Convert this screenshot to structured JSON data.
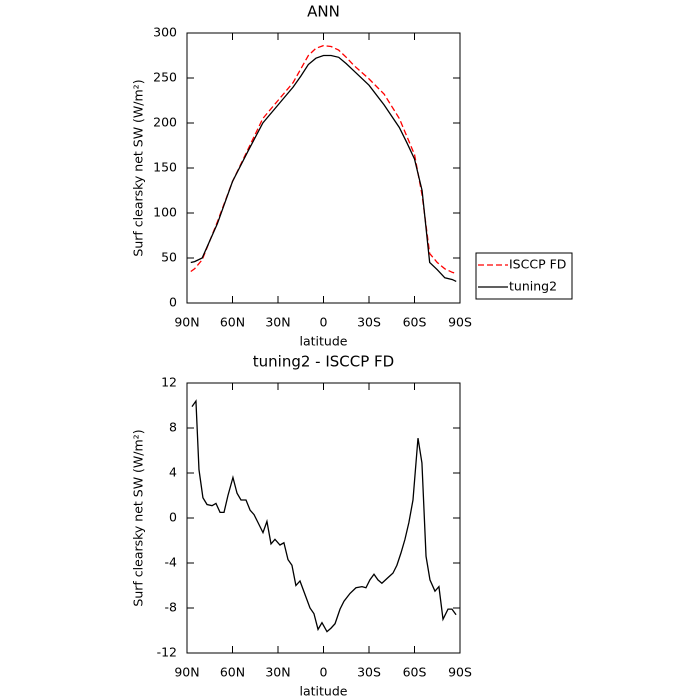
{
  "chart_data": [
    {
      "type": "line",
      "title": "ANN",
      "xlabel": "latitude",
      "ylabel": "Surf clearsky net SW (W/m²)",
      "x": [
        87.5,
        85,
        80,
        70,
        60,
        50,
        40,
        30,
        20,
        15,
        10,
        5,
        0,
        -5,
        -10,
        -15,
        -20,
        -30,
        -40,
        -50,
        -55,
        -60,
        -65,
        -70,
        -75,
        -80,
        -85,
        -87.5
      ],
      "series": [
        {
          "name": "ISCCP FD",
          "color": "#ff0000",
          "dash": true,
          "values": [
            35,
            38,
            48,
            90,
            135,
            170,
            205,
            225,
            245,
            260,
            275,
            283,
            286,
            285,
            281,
            273,
            264,
            249,
            232,
            205,
            185,
            165,
            120,
            55,
            45,
            38,
            34,
            33
          ]
        },
        {
          "name": "tuning2",
          "color": "#000000",
          "dash": false,
          "values": [
            45,
            46,
            50,
            88,
            135,
            168,
            200,
            220,
            240,
            252,
            265,
            272,
            275,
            275,
            273,
            266,
            258,
            242,
            220,
            195,
            178,
            160,
            125,
            45,
            37,
            28,
            26,
            24
          ]
        }
      ],
      "xlim": [
        90,
        -90
      ],
      "xticks": [
        {
          "value": 90,
          "label": "90N"
        },
        {
          "value": 60,
          "label": "60N"
        },
        {
          "value": 30,
          "label": "30N"
        },
        0,
        {
          "value": -30,
          "label": "30S"
        },
        {
          "value": -60,
          "label": "60S"
        },
        {
          "value": -90,
          "label": "90S"
        }
      ],
      "ylim": [
        0,
        300
      ],
      "yticks": [
        0,
        50,
        100,
        150,
        200,
        250,
        300
      ],
      "legend": "outside right"
    },
    {
      "type": "line",
      "title": "tuning2 - ISCCP FD",
      "xlabel": "latitude",
      "ylabel": "Surf clearsky net SW (W/m²)",
      "x": [
        86.7,
        84.1,
        82.1,
        79.5,
        76.8,
        73.5,
        70.9,
        68.2,
        65.6,
        63.0,
        59.7,
        57.0,
        54.4,
        51.1,
        48.4,
        45.8,
        43.2,
        39.9,
        37.3,
        34.6,
        32.0,
        28.7,
        26.1,
        23.4,
        20.8,
        18.2,
        15.5,
        12.2,
        8.9,
        6.3,
        3.6,
        1.0,
        -2.3,
        -4.9,
        -7.6,
        -10.9,
        -13.5,
        -17.5,
        -21.4,
        -25.4,
        -28.0,
        -30.6,
        -33.3,
        -35.9,
        -38.5,
        -42.5,
        -45.8,
        -48.4,
        -51.1,
        -53.7,
        -56.3,
        -59.0,
        -62.3,
        -64.9,
        -67.6,
        -70.2,
        -73.5,
        -76.1,
        -78.8,
        -82.1,
        -84.7,
        -87.4
      ],
      "values": [
        9.9,
        10.4,
        4.3,
        1.8,
        1.2,
        1.1,
        1.3,
        0.5,
        0.5,
        2,
        3.6,
        2.2,
        1.6,
        1.6,
        0.7,
        0.3,
        -0.4,
        -1.3,
        -0.3,
        -2.3,
        -1.9,
        -2.4,
        -2.2,
        -3.7,
        -4.2,
        -6,
        -5.6,
        -6.8,
        -8,
        -8.5,
        -9.9,
        -9.3,
        -10.1,
        -9.8,
        -9.4,
        -8.1,
        -7.4,
        -6.7,
        -6.2,
        -6.1,
        -6.2,
        -5.5,
        -5,
        -5.5,
        -5.8,
        -5.3,
        -4.9,
        -4.2,
        -3.1,
        -1.9,
        -0.4,
        1.6,
        7.1,
        4.9,
        -3.4,
        -5.5,
        -6.5,
        -6.1,
        -9,
        -8.1,
        -8.1,
        -8.6
      ],
      "color": "#000000",
      "xlim": [
        90,
        -90
      ],
      "xticks": [
        {
          "value": 90,
          "label": "90N"
        },
        {
          "value": 60,
          "label": "60N"
        },
        {
          "value": 30,
          "label": "30N"
        },
        0,
        {
          "value": -30,
          "label": "30S"
        },
        {
          "value": -60,
          "label": "60S"
        },
        {
          "value": -90,
          "label": "90S"
        }
      ],
      "ylim": [
        -12,
        12
      ],
      "yticks": [
        -12,
        -8,
        -4,
        0,
        4,
        8,
        12
      ]
    }
  ]
}
